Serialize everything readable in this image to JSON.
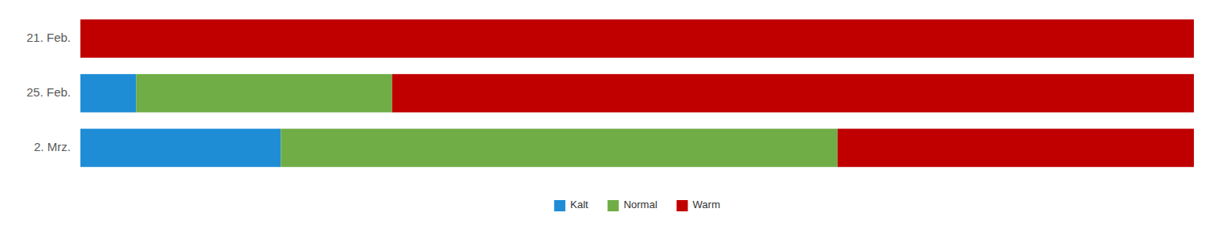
{
  "chart_data": {
    "type": "bar",
    "orientation": "horizontal",
    "stacked": true,
    "categories": [
      "21. Feb.",
      "25. Feb.",
      "2. Mrz."
    ],
    "series": [
      {
        "name": "Kalt",
        "color": "#1f8dd6",
        "values": [
          0,
          5,
          18
        ]
      },
      {
        "name": "Normal",
        "color": "#70ad47",
        "values": [
          0,
          23,
          50
        ]
      },
      {
        "name": "Warm",
        "color": "#c00000",
        "values": [
          100,
          72,
          32
        ]
      }
    ],
    "xlim": [
      0,
      100
    ],
    "tick_labels": "y",
    "legend": "bottom"
  }
}
